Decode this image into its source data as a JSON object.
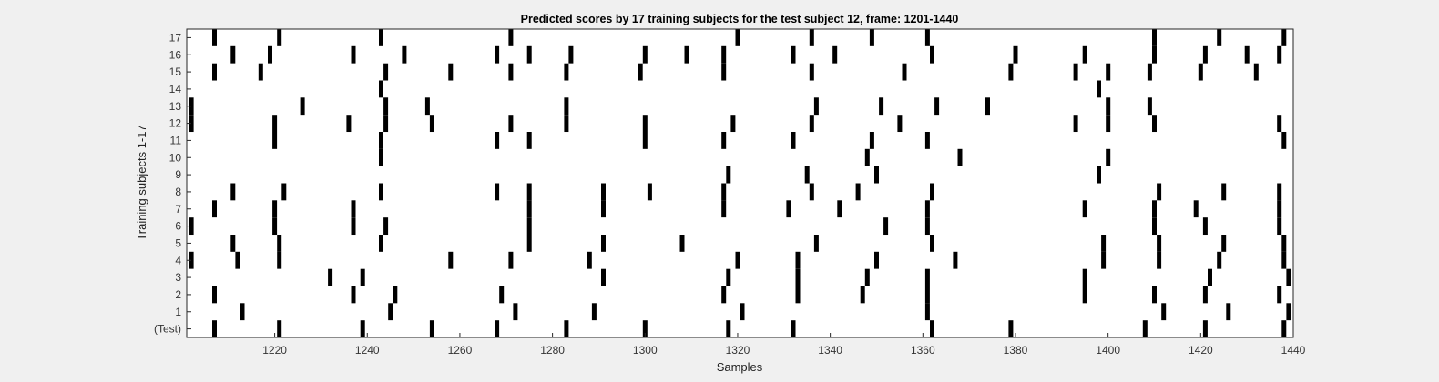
{
  "chart_data": {
    "type": "raster",
    "title": "Predicted scores by 17 training subjects for the test subject 12, frame: 1201-1440",
    "xlabel": "Samples",
    "ylabel": "Training subjects 1-17",
    "xlim": [
      1201,
      1440
    ],
    "xticks": [
      1220,
      1240,
      1260,
      1280,
      1300,
      1320,
      1340,
      1360,
      1380,
      1400,
      1420,
      1440
    ],
    "rows": [
      "(Test)",
      "1",
      "2",
      "3",
      "4",
      "5",
      "6",
      "7",
      "8",
      "9",
      "10",
      "11",
      "12",
      "13",
      "14",
      "15",
      "16",
      "17"
    ],
    "mark_color": "#000000",
    "background_color": "#ffffff",
    "events": [
      {
        "row": "(Test)",
        "x": [
          1207,
          1221,
          1239,
          1254,
          1268,
          1283,
          1300,
          1318,
          1332,
          1362,
          1379,
          1408,
          1421,
          1438
        ]
      },
      {
        "row": "1",
        "x": [
          1213,
          1245,
          1272,
          1289,
          1321,
          1361,
          1412,
          1426,
          1439
        ]
      },
      {
        "row": "2",
        "x": [
          1207,
          1237,
          1246,
          1269,
          1317,
          1333,
          1347,
          1361,
          1395,
          1410,
          1421,
          1437
        ]
      },
      {
        "row": "3",
        "x": [
          1232,
          1239,
          1291,
          1318,
          1333,
          1348,
          1361,
          1395,
          1422,
          1439
        ]
      },
      {
        "row": "4",
        "x": [
          1202,
          1212,
          1221,
          1258,
          1271,
          1288,
          1320,
          1333,
          1350,
          1367,
          1399,
          1411,
          1424,
          1438
        ]
      },
      {
        "row": "5",
        "x": [
          1211,
          1221,
          1243,
          1275,
          1291,
          1308,
          1337,
          1362,
          1399,
          1411,
          1425,
          1438
        ]
      },
      {
        "row": "6",
        "x": [
          1202,
          1220,
          1237,
          1244,
          1275,
          1352,
          1361,
          1410,
          1421,
          1437
        ]
      },
      {
        "row": "7",
        "x": [
          1207,
          1220,
          1237,
          1275,
          1291,
          1317,
          1331,
          1342,
          1361,
          1395,
          1410,
          1419,
          1437
        ]
      },
      {
        "row": "8",
        "x": [
          1211,
          1222,
          1243,
          1268,
          1275,
          1291,
          1301,
          1317,
          1336,
          1346,
          1362,
          1411,
          1425,
          1437
        ]
      },
      {
        "row": "9",
        "x": [
          1318,
          1335,
          1350,
          1398
        ]
      },
      {
        "row": "10",
        "x": [
          1243,
          1348,
          1368,
          1400
        ]
      },
      {
        "row": "11",
        "x": [
          1220,
          1243,
          1268,
          1275,
          1300,
          1317,
          1332,
          1349,
          1361,
          1438
        ]
      },
      {
        "row": "12",
        "x": [
          1202,
          1220,
          1236,
          1244,
          1254,
          1271,
          1283,
          1300,
          1319,
          1336,
          1355,
          1393,
          1400,
          1410,
          1437
        ]
      },
      {
        "row": "13",
        "x": [
          1202,
          1226,
          1244,
          1253,
          1283,
          1337,
          1351,
          1363,
          1374,
          1400,
          1409
        ]
      },
      {
        "row": "14",
        "x": [
          1243,
          1398
        ]
      },
      {
        "row": "15",
        "x": [
          1207,
          1217,
          1244,
          1258,
          1271,
          1283,
          1299,
          1317,
          1336,
          1356,
          1379,
          1393,
          1400,
          1409,
          1420,
          1432
        ]
      },
      {
        "row": "16",
        "x": [
          1211,
          1219,
          1237,
          1248,
          1268,
          1275,
          1284,
          1300,
          1309,
          1317,
          1332,
          1341,
          1362,
          1380,
          1395,
          1410,
          1421,
          1430,
          1437
        ]
      },
      {
        "row": "17",
        "x": [
          1207,
          1221,
          1243,
          1271,
          1320,
          1336,
          1349,
          1361,
          1410,
          1424,
          1438
        ]
      }
    ]
  }
}
